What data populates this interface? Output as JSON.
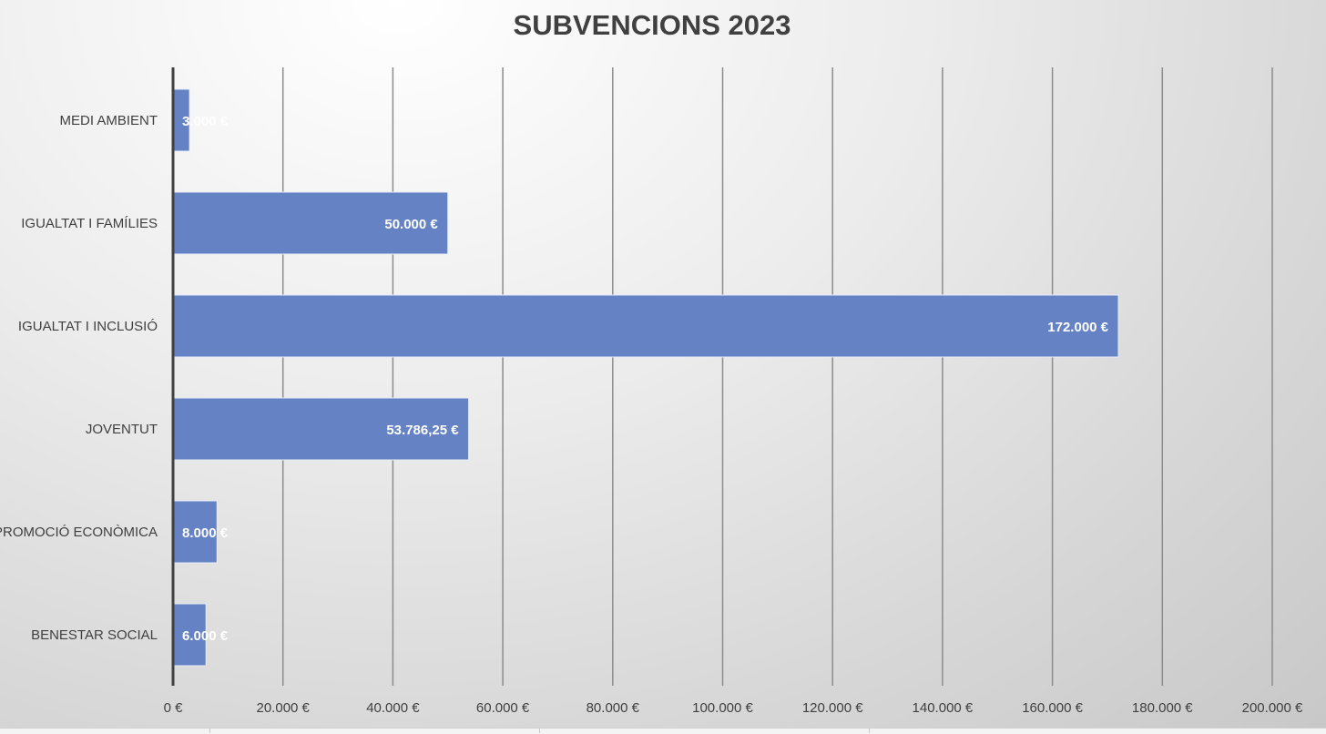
{
  "chart_data": {
    "type": "bar",
    "orientation": "horizontal",
    "title": "SUBVENCIONS 2023",
    "categories": [
      "MEDI AMBIENT",
      "IGUALTAT I FAMÍLIES",
      "IGUALTAT I INCLUSIÓ",
      "JOVENTUT",
      "PROMOCIÓ ECONÒMICA",
      "BENESTAR SOCIAL"
    ],
    "values": [
      3000,
      50000,
      172000,
      53786.25,
      8000,
      6000
    ],
    "data_labels": [
      "3.000 €",
      "50.000 €",
      "172.000 €",
      "53.786,25 €",
      "8.000 €",
      "6.000 €"
    ],
    "xlim": [
      0,
      200000
    ],
    "x_ticks": [
      0,
      20000,
      40000,
      60000,
      80000,
      100000,
      120000,
      140000,
      160000,
      180000,
      200000
    ],
    "x_tick_labels": [
      "0 €",
      "20.000 €",
      "40.000 €",
      "60.000 €",
      "80.000 €",
      "100.000 €",
      "120.000 €",
      "140.000 €",
      "160.000 €",
      "180.000 €",
      "200.000 €"
    ],
    "xlabel": "",
    "ylabel": "",
    "grid": "vertical",
    "legend": "none",
    "bar_color": "#6482c4"
  }
}
